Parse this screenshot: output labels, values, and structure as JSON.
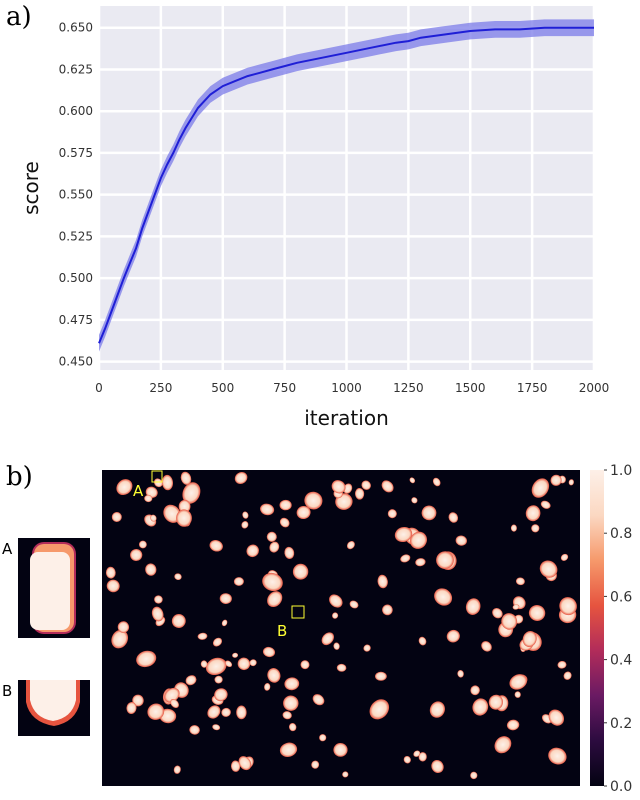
{
  "chart_data": [
    {
      "panel_label": "a)",
      "type": "line",
      "xlabel": "iteration",
      "ylabel": "score",
      "xlim": [
        0,
        2000
      ],
      "ylim": [
        0.445,
        0.663
      ],
      "xticks": [
        0,
        250,
        500,
        750,
        1000,
        1250,
        1500,
        1750,
        2000
      ],
      "yticks": [
        0.45,
        0.475,
        0.5,
        0.525,
        0.55,
        0.575,
        0.6,
        0.625,
        0.65
      ],
      "ytick_labels": [
        "0.450",
        "0.475",
        "0.500",
        "0.525",
        "0.550",
        "0.575",
        "0.600",
        "0.625",
        "0.650"
      ],
      "grid": true,
      "background": "#eaeaf2",
      "line_color": "#1f1fd6",
      "band_color": "#7b7be8",
      "band_halfwidth": 0.005,
      "series": [
        {
          "x": [
            0,
            25,
            50,
            75,
            100,
            125,
            150,
            175,
            200,
            225,
            250,
            275,
            300,
            325,
            350,
            375,
            400,
            450,
            500,
            550,
            600,
            650,
            700,
            750,
            800,
            900,
            1000,
            1100,
            1200,
            1250,
            1300,
            1400,
            1500,
            1600,
            1700,
            1800,
            1900,
            2000
          ],
          "y": [
            0.461,
            0.47,
            0.48,
            0.49,
            0.5,
            0.509,
            0.518,
            0.53,
            0.54,
            0.55,
            0.56,
            0.568,
            0.575,
            0.583,
            0.59,
            0.596,
            0.602,
            0.61,
            0.615,
            0.618,
            0.621,
            0.623,
            0.625,
            0.627,
            0.629,
            0.632,
            0.635,
            0.638,
            0.641,
            0.642,
            0.644,
            0.646,
            0.648,
            0.649,
            0.649,
            0.65,
            0.65,
            0.65
          ]
        }
      ]
    },
    {
      "panel_label": "b)",
      "type": "heatmap",
      "colorbar_ticks": [
        0.0,
        0.2,
        0.4,
        0.6,
        0.8,
        1.0
      ],
      "colorbar_tick_labels": [
        "0.0",
        "0.2",
        "0.4",
        "0.6",
        "0.8",
        "1.0"
      ],
      "colormap": [
        "#030312",
        "#2c0b3f",
        "#6a1a63",
        "#b22c5a",
        "#e6543f",
        "#f6996b",
        "#fbd8c2",
        "#fdf0e8"
      ],
      "markers": [
        {
          "label": "A",
          "color": "#ffff33"
        },
        {
          "label": "B",
          "color": "#ffff33"
        }
      ],
      "insets": [
        {
          "label": "A"
        },
        {
          "label": "B"
        }
      ]
    }
  ]
}
